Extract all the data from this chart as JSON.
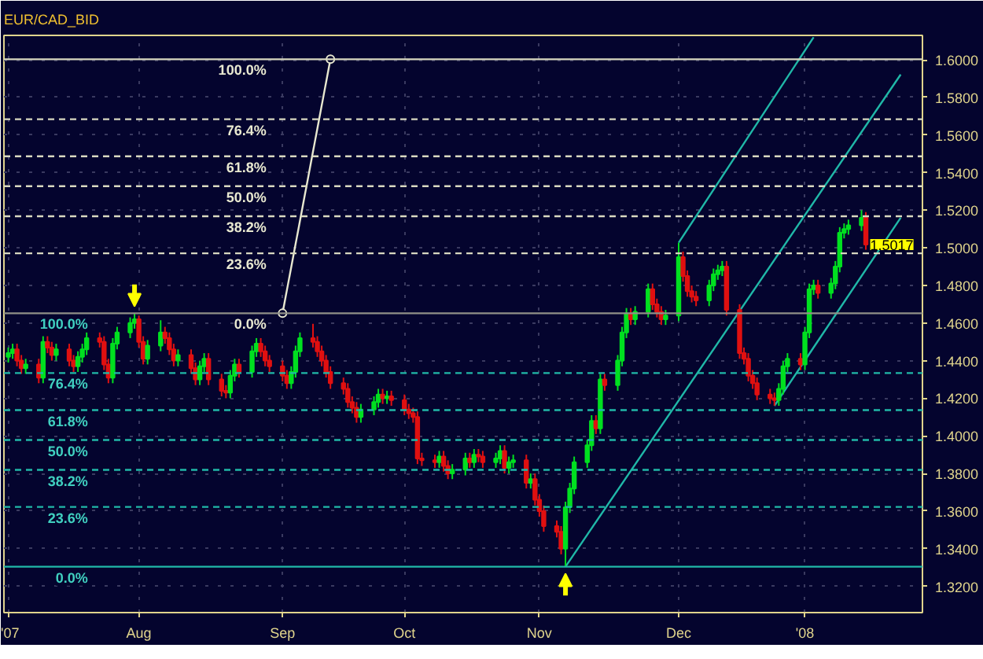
{
  "chart_data": {
    "type": "candlestick",
    "title": "EUR/CAD_BID",
    "x": [
      "2007-07-02",
      "2007-07-03",
      "2007-07-04",
      "2007-07-05",
      "2007-07-06",
      "2007-07-09",
      "2007-07-10",
      "2007-07-11",
      "2007-07-12",
      "2007-07-13",
      "2007-07-16",
      "2007-07-17",
      "2007-07-18",
      "2007-07-19",
      "2007-07-20",
      "2007-07-23",
      "2007-07-24",
      "2007-07-25",
      "2007-07-26",
      "2007-07-27",
      "2007-07-30",
      "2007-07-31",
      "2007-08-01",
      "2007-08-02",
      "2007-08-03",
      "2007-08-06",
      "2007-08-07",
      "2007-08-08",
      "2007-08-09",
      "2007-08-10",
      "2007-08-13",
      "2007-08-14",
      "2007-08-15",
      "2007-08-16",
      "2007-08-17",
      "2007-08-20",
      "2007-08-21",
      "2007-08-22",
      "2007-08-23",
      "2007-08-24",
      "2007-08-27",
      "2007-08-28",
      "2007-08-29",
      "2007-08-30",
      "2007-08-31",
      "2007-09-03",
      "2007-09-04",
      "2007-09-05",
      "2007-09-06",
      "2007-09-07",
      "2007-09-10",
      "2007-09-11",
      "2007-09-12",
      "2007-09-13",
      "2007-09-14",
      "2007-09-17",
      "2007-09-18",
      "2007-09-19",
      "2007-09-20",
      "2007-09-21",
      "2007-09-24",
      "2007-09-25",
      "2007-09-26",
      "2007-09-27",
      "2007-09-28",
      "2007-10-01",
      "2007-10-02",
      "2007-10-03",
      "2007-10-04",
      "2007-10-05",
      "2007-10-08",
      "2007-10-09",
      "2007-10-10",
      "2007-10-11",
      "2007-10-12",
      "2007-10-15",
      "2007-10-16",
      "2007-10-17",
      "2007-10-18",
      "2007-10-19",
      "2007-10-22",
      "2007-10-23",
      "2007-10-24",
      "2007-10-25",
      "2007-10-26",
      "2007-10-29",
      "2007-10-30",
      "2007-10-31",
      "2007-11-01",
      "2007-11-02",
      "2007-11-05",
      "2007-11-06",
      "2007-11-07",
      "2007-11-08",
      "2007-11-09",
      "2007-11-12",
      "2007-11-13",
      "2007-11-14",
      "2007-11-15",
      "2007-11-16",
      "2007-11-19",
      "2007-11-20",
      "2007-11-21",
      "2007-11-22",
      "2007-11-23",
      "2007-11-26",
      "2007-11-27",
      "2007-11-28",
      "2007-11-29",
      "2007-11-30",
      "2007-12-03",
      "2007-12-04",
      "2007-12-05",
      "2007-12-06",
      "2007-12-07",
      "2007-12-10",
      "2007-12-11",
      "2007-12-12",
      "2007-12-13",
      "2007-12-14",
      "2007-12-17",
      "2007-12-18",
      "2007-12-19",
      "2007-12-20",
      "2007-12-21",
      "2007-12-24",
      "2007-12-25",
      "2007-12-26",
      "2007-12-27",
      "2007-12-28",
      "2007-12-31",
      "2008-01-01",
      "2008-01-02",
      "2008-01-03",
      "2008-01-04",
      "2008-01-07",
      "2008-01-08",
      "2008-01-09",
      "2008-01-10",
      "2008-01-11",
      "2008-01-14",
      "2008-01-15"
    ],
    "ohlc": [
      [
        1.442,
        1.447,
        1.439,
        1.444
      ],
      [
        1.444,
        1.449,
        1.441,
        1.446
      ],
      [
        1.446,
        1.449,
        1.437,
        1.44
      ],
      [
        1.44,
        1.443,
        1.433,
        1.436
      ],
      [
        1.436,
        1.441,
        1.433,
        1.438
      ],
      [
        1.438,
        1.441,
        1.428,
        1.431
      ],
      [
        1.431,
        1.453,
        1.428,
        1.45
      ],
      [
        1.45,
        1.453,
        1.444,
        1.447
      ],
      [
        1.447,
        1.45,
        1.44,
        1.443
      ],
      [
        1.443,
        1.449,
        1.44,
        1.446
      ],
      [
        1.446,
        1.449,
        1.437,
        1.44
      ],
      [
        1.44,
        1.443,
        1.434,
        1.437
      ],
      [
        1.437,
        1.445,
        1.434,
        1.442
      ],
      [
        1.442,
        1.449,
        1.439,
        1.446
      ],
      [
        1.446,
        1.455,
        1.443,
        1.452
      ],
      [
        1.452,
        1.455,
        1.447,
        1.45
      ],
      [
        1.45,
        1.453,
        1.435,
        1.438
      ],
      [
        1.438,
        1.441,
        1.428,
        1.431
      ],
      [
        1.431,
        1.452,
        1.428,
        1.449
      ],
      [
        1.449,
        1.458,
        1.446,
        1.455
      ],
      [
        1.455,
        1.463,
        1.452,
        1.46
      ],
      [
        1.46,
        1.4652,
        1.457,
        1.462
      ],
      [
        1.462,
        1.464,
        1.447,
        1.45
      ],
      [
        1.45,
        1.453,
        1.438,
        1.441
      ],
      [
        1.441,
        1.451,
        1.438,
        1.448
      ],
      [
        1.448,
        1.4615,
        1.445,
        1.455
      ],
      [
        1.455,
        1.458,
        1.449,
        1.452
      ],
      [
        1.452,
        1.455,
        1.443,
        1.446
      ],
      [
        1.446,
        1.449,
        1.437,
        1.44
      ],
      [
        1.44,
        1.446,
        1.437,
        1.443
      ],
      [
        1.443,
        1.446,
        1.433,
        1.436
      ],
      [
        1.436,
        1.439,
        1.427,
        1.43
      ],
      [
        1.43,
        1.44,
        1.427,
        1.437
      ],
      [
        1.437,
        1.444,
        1.434,
        1.441
      ],
      [
        1.441,
        1.444,
        1.427,
        1.43
      ],
      [
        1.43,
        1.433,
        1.421,
        1.424
      ],
      [
        1.424,
        1.427,
        1.42,
        1.423
      ],
      [
        1.423,
        1.435,
        1.42,
        1.432
      ],
      [
        1.432,
        1.441,
        1.429,
        1.438
      ],
      [
        1.438,
        1.441,
        1.431,
        1.434
      ],
      [
        1.434,
        1.448,
        1.431,
        1.445
      ],
      [
        1.445,
        1.452,
        1.442,
        1.449
      ],
      [
        1.449,
        1.452,
        1.442,
        1.445
      ],
      [
        1.445,
        1.448,
        1.437,
        1.44
      ],
      [
        1.44,
        1.443,
        1.434,
        1.437
      ],
      [
        1.437,
        1.44,
        1.429,
        1.432
      ],
      [
        1.432,
        1.435,
        1.425,
        1.428
      ],
      [
        1.428,
        1.437,
        1.425,
        1.434
      ],
      [
        1.434,
        1.448,
        1.431,
        1.445
      ],
      [
        1.445,
        1.455,
        1.442,
        1.452
      ],
      [
        1.452,
        1.4596,
        1.447,
        1.45
      ],
      [
        1.45,
        1.453,
        1.442,
        1.445
      ],
      [
        1.445,
        1.448,
        1.437,
        1.44
      ],
      [
        1.44,
        1.443,
        1.431,
        1.434
      ],
      [
        1.434,
        1.437,
        1.425,
        1.428
      ],
      [
        1.428,
        1.431,
        1.422,
        1.425
      ],
      [
        1.425,
        1.428,
        1.415,
        1.418
      ],
      [
        1.418,
        1.421,
        1.412,
        1.415
      ],
      [
        1.415,
        1.418,
        1.407,
        1.41
      ],
      [
        1.41,
        1.417,
        1.407,
        1.414
      ],
      [
        1.414,
        1.421,
        1.411,
        1.418
      ],
      [
        1.418,
        1.425,
        1.415,
        1.422
      ],
      [
        1.422,
        1.425,
        1.417,
        1.42
      ],
      [
        1.42,
        1.424,
        1.417,
        1.421
      ],
      [
        1.421,
        1.424,
        1.416,
        1.419
      ],
      [
        1.419,
        1.422,
        1.411,
        1.414
      ],
      [
        1.414,
        1.417,
        1.409,
        1.412
      ],
      [
        1.412,
        1.415,
        1.407,
        1.41
      ],
      [
        1.41,
        1.413,
        1.385,
        1.388
      ],
      [
        1.388,
        1.391,
        1.384,
        1.387
      ],
      [
        1.387,
        1.39,
        1.383,
        1.386
      ],
      [
        1.386,
        1.392,
        1.383,
        1.389
      ],
      [
        1.389,
        1.392,
        1.381,
        1.384
      ],
      [
        1.384,
        1.387,
        1.377,
        1.38
      ],
      [
        1.38,
        1.385,
        1.377,
        1.382
      ],
      [
        1.382,
        1.391,
        1.379,
        1.388
      ],
      [
        1.388,
        1.391,
        1.383,
        1.386
      ],
      [
        1.386,
        1.393,
        1.383,
        1.39
      ],
      [
        1.39,
        1.393,
        1.386,
        1.389
      ],
      [
        1.389,
        1.392,
        1.383,
        1.386
      ],
      [
        1.386,
        1.391,
        1.383,
        1.388
      ],
      [
        1.388,
        1.395,
        1.385,
        1.392
      ],
      [
        1.392,
        1.395,
        1.38,
        1.383
      ],
      [
        1.383,
        1.389,
        1.38,
        1.386
      ],
      [
        1.386,
        1.39,
        1.383,
        1.387
      ],
      [
        1.387,
        1.39,
        1.372,
        1.375
      ],
      [
        1.375,
        1.38,
        1.372,
        1.377
      ],
      [
        1.377,
        1.38,
        1.363,
        1.366
      ],
      [
        1.366,
        1.369,
        1.357,
        1.36
      ],
      [
        1.36,
        1.363,
        1.349,
        1.352
      ],
      [
        1.352,
        1.355,
        1.346,
        1.349
      ],
      [
        1.349,
        1.352,
        1.337,
        1.34
      ],
      [
        1.34,
        1.365,
        1.3304,
        1.362
      ],
      [
        1.362,
        1.375,
        1.359,
        1.372
      ],
      [
        1.372,
        1.389,
        1.369,
        1.386
      ],
      [
        1.386,
        1.398,
        1.383,
        1.395
      ],
      [
        1.395,
        1.411,
        1.392,
        1.408
      ],
      [
        1.408,
        1.411,
        1.401,
        1.404
      ],
      [
        1.404,
        1.433,
        1.401,
        1.43
      ],
      [
        1.43,
        1.433,
        1.424,
        1.427
      ],
      [
        1.427,
        1.443,
        1.424,
        1.44
      ],
      [
        1.44,
        1.458,
        1.437,
        1.455
      ],
      [
        1.455,
        1.468,
        1.452,
        1.465
      ],
      [
        1.465,
        1.468,
        1.459,
        1.462
      ],
      [
        1.462,
        1.469,
        1.459,
        1.466
      ],
      [
        1.466,
        1.481,
        1.463,
        1.478
      ],
      [
        1.478,
        1.481,
        1.467,
        1.47
      ],
      [
        1.47,
        1.473,
        1.463,
        1.466
      ],
      [
        1.466,
        1.469,
        1.459,
        1.462
      ],
      [
        1.462,
        1.467,
        1.459,
        1.464
      ],
      [
        1.464,
        1.5027,
        1.461,
        1.495
      ],
      [
        1.495,
        1.498,
        1.482,
        1.485
      ],
      [
        1.485,
        1.488,
        1.474,
        1.477
      ],
      [
        1.477,
        1.48,
        1.471,
        1.474
      ],
      [
        1.474,
        1.477,
        1.469,
        1.472
      ],
      [
        1.472,
        1.483,
        1.469,
        1.48
      ],
      [
        1.48,
        1.489,
        1.477,
        1.486
      ],
      [
        1.486,
        1.491,
        1.483,
        1.488
      ],
      [
        1.488,
        1.493,
        1.485,
        1.49
      ],
      [
        1.49,
        1.493,
        1.464,
        1.467
      ],
      [
        1.467,
        1.47,
        1.441,
        1.444
      ],
      [
        1.444,
        1.447,
        1.438,
        1.441
      ],
      [
        1.441,
        1.444,
        1.429,
        1.432
      ],
      [
        1.432,
        1.435,
        1.425,
        1.428
      ],
      [
        1.428,
        1.431,
        1.419,
        1.422
      ],
      [
        1.422,
        1.425,
        1.417,
        1.42
      ],
      [
        1.42,
        1.423,
        1.416,
        1.419
      ],
      [
        1.419,
        1.428,
        1.416,
        1.425
      ],
      [
        1.425,
        1.44,
        1.422,
        1.437
      ],
      [
        1.437,
        1.444,
        1.434,
        1.441
      ],
      [
        1.441,
        1.444,
        1.435,
        1.438
      ],
      [
        1.438,
        1.458,
        1.435,
        1.455
      ],
      [
        1.455,
        1.481,
        1.452,
        1.478
      ],
      [
        1.478,
        1.483,
        1.475,
        1.48
      ],
      [
        1.48,
        1.483,
        1.473,
        1.476
      ],
      [
        1.476,
        1.484,
        1.473,
        1.481
      ],
      [
        1.481,
        1.493,
        1.478,
        1.49
      ],
      [
        1.49,
        1.511,
        1.487,
        1.508
      ],
      [
        1.508,
        1.513,
        1.505,
        1.51
      ],
      [
        1.51,
        1.515,
        1.507,
        1.512
      ],
      [
        1.512,
        1.52,
        1.509,
        1.516
      ],
      [
        1.516,
        1.519,
        1.499,
        1.5017
      ]
    ],
    "series": [
      {
        "type": "line",
        "color": "#e8e8d0",
        "marker": "circle",
        "x": [
          "2007-09-03",
          "2007-09-14"
        ],
        "values": [
          1.4652,
          1.6003
        ]
      },
      {
        "type": "line",
        "color": "#20b8a8",
        "x": [
          "2007-12-03",
          "2008-01-03"
        ],
        "values": [
          1.5027,
          1.612
        ]
      },
      {
        "type": "line",
        "color": "#20b8a8",
        "x": [
          "2007-11-07",
          "2008-01-23"
        ],
        "values": [
          1.3304,
          1.5922
        ]
      },
      {
        "type": "line",
        "color": "#20b8a8",
        "x": [
          "2007-12-25",
          "2008-01-23"
        ],
        "values": [
          1.416,
          1.516
        ]
      }
    ],
    "ref_lines": [
      {
        "axis": "y",
        "value": 1.4652,
        "color": "#909088",
        "line_style": "solid"
      },
      {
        "axis": "y",
        "value": 1.4334,
        "color": "#20b8a8",
        "line_style": "dashed"
      },
      {
        "axis": "y",
        "value": 1.4137,
        "color": "#20b8a8",
        "line_style": "dashed"
      },
      {
        "axis": "y",
        "value": 1.3978,
        "color": "#20b8a8",
        "line_style": "dashed"
      },
      {
        "axis": "y",
        "value": 1.3819,
        "color": "#20b8a8",
        "line_style": "dashed"
      },
      {
        "axis": "y",
        "value": 1.3622,
        "color": "#20b8a8",
        "line_style": "dashed"
      },
      {
        "axis": "y",
        "value": 1.3304,
        "color": "#20b8a8",
        "line_style": "solid"
      },
      {
        "axis": "y",
        "value": 1.4971,
        "color": "#d8d8c0",
        "line_style": "dashed"
      },
      {
        "axis": "y",
        "value": 1.5168,
        "color": "#d8d8c0",
        "line_style": "dashed"
      },
      {
        "axis": "y",
        "value": 1.5328,
        "color": "#d8d8c0",
        "line_style": "dashed"
      },
      {
        "axis": "y",
        "value": 1.5487,
        "color": "#d8d8c0",
        "line_style": "dashed"
      },
      {
        "axis": "y",
        "value": 1.5684,
        "color": "#d8d8c0",
        "line_style": "dashed"
      },
      {
        "axis": "y",
        "value": 1.6003,
        "color": "#d8d8c0",
        "line_style": "solid"
      }
    ],
    "annotations": [
      {
        "text": "100.0%",
        "x": "2007-07-21",
        "y": 1.4652
      },
      {
        "text": "76.4%",
        "x": "2007-07-21",
        "y": 1.4334
      },
      {
        "text": "61.8%",
        "x": "2007-07-21",
        "y": 1.4137
      },
      {
        "text": "50.0%",
        "x": "2007-07-21",
        "y": 1.3978
      },
      {
        "text": "38.2%",
        "x": "2007-07-21",
        "y": 1.3819
      },
      {
        "text": "23.6%",
        "x": "2007-07-21",
        "y": 1.3622
      },
      {
        "text": "0.0%",
        "x": "2007-07-21",
        "y": 1.3304
      },
      {
        "text": "0.0%",
        "x": "2007-08-31",
        "y": 1.4652
      },
      {
        "text": "23.6%",
        "x": "2007-08-31",
        "y": 1.4971
      },
      {
        "text": "38.2%",
        "x": "2007-08-31",
        "y": 1.5168
      },
      {
        "text": "50.0%",
        "x": "2007-08-31",
        "y": 1.5328
      },
      {
        "text": "61.8%",
        "x": "2007-08-31",
        "y": 1.5487
      },
      {
        "text": "76.4%",
        "x": "2007-08-31",
        "y": 1.5684
      },
      {
        "text": "100.0%",
        "x": "2007-08-31",
        "y": 1.6003
      },
      {
        "text": "1.5017",
        "x": "2008-01-16",
        "y": 1.5017
      }
    ],
    "xlim": [
      "2007-07-01",
      "2008-01-28"
    ],
    "xticks": [
      {
        "value": "2007-07-02",
        "label": "'07"
      },
      {
        "value": "2007-08-01",
        "label": "Aug"
      },
      {
        "value": "2007-09-03",
        "label": "Sep"
      },
      {
        "value": "2007-10-01",
        "label": "Oct"
      },
      {
        "value": "2007-11-01",
        "label": "Nov"
      },
      {
        "value": "2007-12-03",
        "label": "Dec"
      },
      {
        "value": "2008-01-01",
        "label": "'08"
      }
    ],
    "ylim": [
      1.306,
      1.613
    ],
    "yticks": [
      {
        "value": 1.32,
        "label": "1.3200"
      },
      {
        "value": 1.34,
        "label": "1.3400"
      },
      {
        "value": 1.36,
        "label": "1.3600"
      },
      {
        "value": 1.38,
        "label": "1.3800"
      },
      {
        "value": 1.4,
        "label": "1.4000"
      },
      {
        "value": 1.42,
        "label": "1.4200"
      },
      {
        "value": 1.44,
        "label": "1.4400"
      },
      {
        "value": 1.46,
        "label": "1.4600"
      },
      {
        "value": 1.48,
        "label": "1.4800"
      },
      {
        "value": 1.5,
        "label": "1.5000"
      },
      {
        "value": 1.52,
        "label": "1.5200"
      },
      {
        "value": 1.54,
        "label": "1.5400"
      },
      {
        "value": 1.56,
        "label": "1.5600"
      },
      {
        "value": 1.58,
        "label": "1.5800"
      },
      {
        "value": 1.6,
        "label": "1.6000"
      }
    ],
    "grid": true
  }
}
